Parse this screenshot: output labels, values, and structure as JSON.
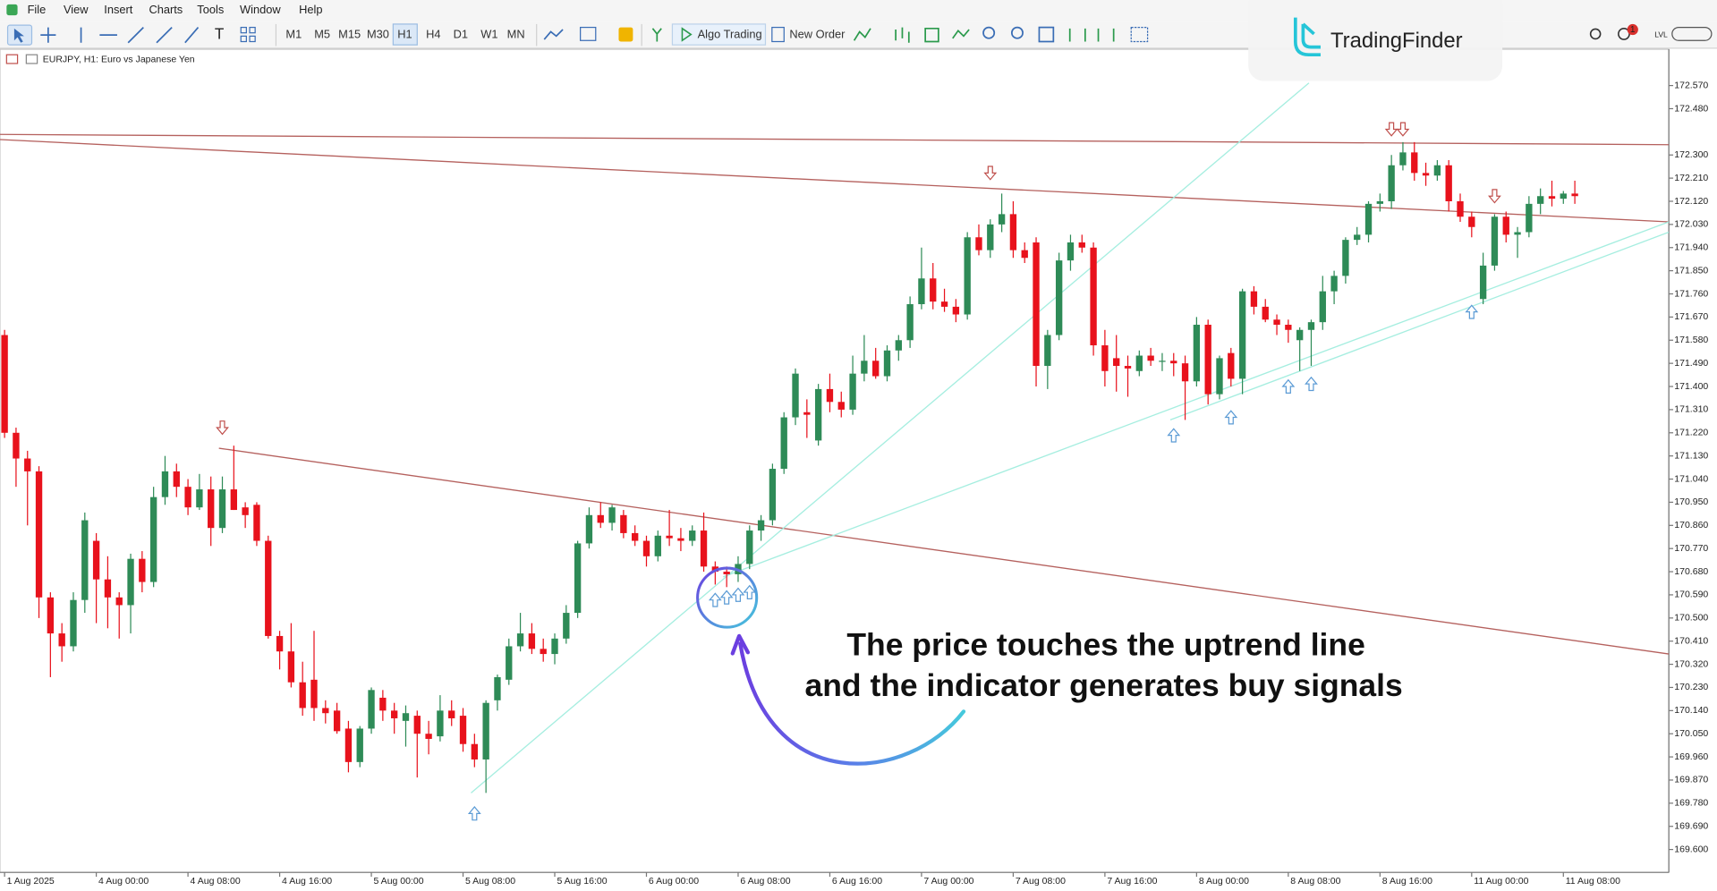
{
  "menu": [
    "File",
    "View",
    "Insert",
    "Charts",
    "Tools",
    "Window",
    "Help"
  ],
  "toolbar": {
    "timeframes": [
      "M1",
      "M5",
      "M15",
      "M30",
      "H1",
      "H4",
      "D1",
      "W1",
      "MN"
    ],
    "algo_trading": "Algo Trading",
    "new_order": "New Order",
    "badge": 1,
    "lvl": "LVL"
  },
  "watermark": "TradingFinder",
  "chart_data": {
    "type": "candlestick",
    "title": "EURJPY, H1: Euro vs Japanese Yen",
    "annotations": [
      "The price touches the uptrend line",
      "and the indicator generates buy signals"
    ],
    "up_color": "#2e8b57",
    "down_color": "#e8121c",
    "categories": [
      "1 Aug 2025",
      null,
      null,
      null,
      null,
      null,
      null,
      null,
      "4 Aug 00:00",
      null,
      null,
      null,
      null,
      null,
      null,
      null,
      "4 Aug 08:00",
      null,
      null,
      null,
      null,
      null,
      null,
      null,
      "4 Aug 16:00",
      null,
      null,
      null,
      null,
      null,
      null,
      null,
      "5 Aug 00:00",
      null,
      null,
      null,
      null,
      null,
      null,
      null,
      "5 Aug 08:00",
      null,
      null,
      null,
      null,
      null,
      null,
      null,
      "5 Aug 16:00",
      null,
      null,
      null,
      null,
      null,
      null,
      null,
      "6 Aug 00:00",
      null,
      null,
      null,
      null,
      null,
      null,
      null,
      "6 Aug 08:00",
      null,
      null,
      null,
      null,
      null,
      null,
      null,
      "6 Aug 16:00",
      null,
      null,
      null,
      null,
      null,
      null,
      null,
      "7 Aug 00:00",
      null,
      null,
      null,
      null,
      null,
      null,
      null,
      "7 Aug 08:00",
      null,
      null,
      null,
      null,
      null,
      null,
      null,
      "7 Aug 16:00",
      null,
      null,
      null,
      null,
      null,
      null,
      null,
      "8 Aug 00:00",
      null,
      null,
      null,
      null,
      null,
      null,
      null,
      "8 Aug 08:00",
      null,
      null,
      null,
      null,
      null,
      null,
      null,
      "8 Aug 16:00",
      null,
      null,
      null,
      null,
      null,
      null,
      null,
      "11 Aug 00:00",
      null,
      null,
      null,
      null,
      null,
      null,
      null,
      "11 Aug 08:00",
      null
    ],
    "open": [
      171.6,
      171.22,
      171.12,
      171.07,
      170.58,
      170.44,
      170.39,
      170.57,
      170.8,
      170.65,
      170.58,
      170.55,
      170.73,
      170.64,
      170.97,
      171.07,
      171.01,
      170.93,
      171.0,
      170.85,
      171.0,
      170.93,
      170.94,
      170.8,
      170.43,
      170.37,
      170.25,
      170.26,
      170.15,
      170.14,
      170.07,
      169.94,
      170.07,
      170.19,
      170.14,
      170.1,
      170.12,
      170.05,
      170.04,
      170.14,
      170.12,
      170.01,
      169.95,
      170.18,
      170.26,
      170.39,
      170.44,
      170.38,
      170.36,
      170.42,
      170.52,
      170.79,
      170.9,
      170.87,
      170.9,
      170.83,
      170.8,
      170.74,
      170.82,
      170.81,
      170.8,
      170.84,
      170.7,
      170.68,
      170.67,
      170.71,
      170.84,
      170.88,
      171.08,
      171.28,
      171.3,
      171.19,
      171.39,
      171.34,
      171.31,
      171.45,
      171.5,
      171.44,
      171.54,
      171.58,
      171.72,
      171.82,
      171.73,
      171.71,
      171.68,
      171.98,
      171.93,
      172.03,
      172.07,
      171.93,
      171.96,
      171.48,
      171.6,
      171.89,
      171.96,
      171.94,
      171.56,
      171.51,
      171.48,
      171.46,
      171.52,
      171.5,
      171.5,
      171.49,
      171.42,
      171.64,
      171.37,
      171.53,
      171.43,
      171.77,
      171.71,
      171.66,
      171.64,
      171.58,
      171.62,
      171.65,
      171.77,
      171.83,
      171.97,
      171.99,
      172.11,
      172.12,
      172.26,
      172.31,
      172.23,
      172.22,
      172.26,
      172.12,
      172.06,
      171.74,
      171.87,
      172.06,
      171.99,
      172.0,
      172.11,
      172.14,
      172.13,
      172.15
    ],
    "high": [
      171.62,
      171.24,
      171.15,
      171.09,
      170.6,
      170.48,
      170.6,
      170.91,
      170.83,
      170.74,
      170.6,
      170.75,
      170.76,
      171.01,
      171.13,
      171.1,
      171.04,
      171.06,
      171.05,
      171.05,
      171.17,
      170.95,
      170.95,
      170.82,
      170.45,
      170.48,
      170.33,
      170.45,
      170.18,
      170.17,
      170.1,
      170.08,
      170.23,
      170.22,
      170.17,
      170.16,
      170.14,
      170.1,
      170.2,
      170.18,
      170.15,
      170.05,
      170.18,
      170.28,
      170.42,
      170.52,
      170.48,
      170.42,
      170.44,
      170.55,
      170.8,
      170.93,
      170.95,
      170.94,
      170.92,
      170.86,
      170.82,
      170.84,
      170.92,
      170.85,
      170.86,
      170.91,
      170.72,
      170.7,
      170.74,
      170.86,
      170.9,
      171.1,
      171.3,
      171.47,
      171.35,
      171.41,
      171.45,
      171.38,
      171.52,
      171.6,
      171.55,
      171.56,
      171.6,
      171.75,
      171.94,
      171.88,
      171.78,
      171.74,
      172.0,
      172.03,
      172.05,
      172.15,
      172.12,
      171.96,
      171.98,
      171.62,
      171.92,
      171.99,
      171.99,
      171.96,
      171.62,
      171.6,
      171.52,
      171.54,
      171.55,
      171.53,
      171.53,
      171.52,
      171.67,
      171.66,
      171.52,
      171.55,
      171.78,
      171.79,
      171.74,
      171.68,
      171.66,
      171.63,
      171.66,
      171.83,
      171.85,
      171.98,
      172.02,
      172.12,
      172.15,
      172.3,
      172.35,
      172.35,
      172.27,
      172.28,
      172.28,
      172.15,
      172.08,
      171.92,
      172.07,
      172.08,
      172.02,
      172.14,
      172.17,
      172.2,
      172.16,
      172.2
    ],
    "low": [
      171.2,
      171.01,
      170.86,
      170.5,
      170.27,
      170.33,
      170.37,
      170.52,
      170.48,
      170.46,
      170.42,
      170.44,
      170.6,
      170.62,
      170.94,
      170.97,
      170.9,
      170.92,
      170.78,
      170.83,
      170.92,
      170.85,
      170.78,
      170.42,
      170.3,
      170.23,
      170.12,
      170.1,
      170.09,
      170.05,
      169.9,
      169.92,
      170.05,
      170.1,
      170.05,
      170.0,
      169.88,
      169.97,
      170.02,
      170.08,
      169.98,
      169.92,
      169.82,
      170.14,
      170.24,
      170.37,
      170.36,
      170.33,
      170.32,
      170.4,
      170.5,
      170.77,
      170.85,
      170.84,
      170.81,
      170.78,
      170.7,
      170.72,
      170.78,
      170.76,
      170.78,
      170.68,
      170.63,
      170.62,
      170.64,
      170.69,
      170.8,
      170.86,
      171.06,
      171.25,
      171.2,
      171.17,
      171.3,
      171.28,
      171.29,
      171.42,
      171.43,
      171.42,
      171.5,
      171.55,
      171.7,
      171.7,
      171.69,
      171.65,
      171.66,
      171.91,
      171.9,
      172.0,
      171.9,
      171.88,
      171.4,
      171.39,
      171.58,
      171.85,
      171.92,
      171.52,
      171.4,
      171.38,
      171.36,
      171.44,
      171.48,
      171.46,
      171.44,
      171.27,
      171.4,
      171.33,
      171.35,
      171.4,
      171.37,
      171.68,
      171.65,
      171.6,
      171.57,
      171.46,
      171.48,
      171.62,
      171.72,
      171.8,
      171.95,
      171.96,
      172.08,
      172.09,
      172.24,
      172.2,
      172.18,
      172.2,
      172.08,
      172.04,
      171.98,
      171.72,
      171.85,
      171.96,
      171.9,
      171.98,
      172.07,
      172.1,
      172.11,
      172.11
    ],
    "close": [
      171.22,
      171.12,
      171.07,
      170.58,
      170.44,
      170.39,
      170.57,
      170.88,
      170.65,
      170.58,
      170.55,
      170.73,
      170.64,
      170.97,
      171.07,
      171.01,
      170.93,
      171.0,
      170.85,
      171.0,
      170.92,
      170.9,
      170.8,
      170.43,
      170.37,
      170.25,
      170.15,
      170.15,
      170.13,
      170.06,
      169.94,
      170.07,
      170.22,
      170.14,
      170.11,
      170.13,
      170.05,
      170.03,
      170.14,
      170.11,
      170.01,
      169.95,
      170.17,
      170.27,
      170.39,
      170.44,
      170.38,
      170.36,
      170.42,
      170.52,
      170.79,
      170.9,
      170.87,
      170.93,
      170.83,
      170.8,
      170.74,
      170.82,
      170.81,
      170.8,
      170.84,
      170.7,
      170.68,
      170.67,
      170.71,
      170.84,
      170.88,
      171.08,
      171.28,
      171.45,
      171.29,
      171.39,
      171.34,
      171.31,
      171.45,
      171.5,
      171.44,
      171.54,
      171.58,
      171.72,
      171.82,
      171.73,
      171.71,
      171.68,
      171.98,
      171.93,
      172.03,
      172.07,
      171.93,
      171.9,
      171.48,
      171.6,
      171.89,
      171.96,
      171.94,
      171.56,
      171.46,
      171.48,
      171.47,
      171.52,
      171.5,
      171.5,
      171.49,
      171.42,
      171.64,
      171.37,
      171.51,
      171.43,
      171.77,
      171.71,
      171.66,
      171.64,
      171.62,
      171.62,
      171.65,
      171.77,
      171.83,
      171.97,
      171.99,
      172.11,
      172.12,
      172.26,
      172.31,
      172.23,
      172.22,
      172.26,
      172.12,
      172.06,
      172.02,
      171.87,
      172.06,
      171.99,
      172.0,
      172.11,
      172.14,
      172.13,
      172.15,
      172.14
    ],
    "lines": [
      {
        "color": "#b5615e",
        "points": [
          [
            -0.4,
            172.38
          ],
          [
            145.2,
            172.34
          ]
        ]
      },
      {
        "color": "#b5615e",
        "points": [
          [
            -0.4,
            172.36
          ],
          [
            145.2,
            172.04
          ]
        ]
      },
      {
        "color": "#b5615e",
        "points": [
          [
            18.7,
            171.16
          ],
          [
            145.2,
            170.36
          ]
        ]
      },
      {
        "color": "#a6eee0",
        "points": [
          [
            40.7,
            169.82
          ],
          [
            113.8,
            172.58
          ]
        ]
      },
      {
        "color": "#a6eee0",
        "points": [
          [
            62.7,
            170.66
          ],
          [
            145.2,
            172.04
          ]
        ]
      },
      {
        "color": "#a6eee0",
        "points": [
          [
            101.7,
            171.27
          ],
          [
            145.2,
            172.0
          ]
        ]
      }
    ],
    "sell_signals": {
      "color": "#c0504d",
      "points": [
        [
          19,
          171.24
        ],
        [
          86,
          172.23
        ],
        [
          121,
          172.4
        ],
        [
          122,
          172.4
        ],
        [
          130,
          172.14
        ]
      ]
    },
    "buy_signals": {
      "color": "#5b9bd5",
      "points": [
        [
          41,
          169.74
        ],
        [
          62,
          170.57
        ],
        [
          63,
          170.58
        ],
        [
          64,
          170.59
        ],
        [
          65,
          170.6
        ],
        [
          102,
          171.21
        ],
        [
          107,
          171.28
        ],
        [
          112,
          171.4
        ],
        [
          114,
          171.41
        ],
        [
          128,
          171.69
        ]
      ]
    },
    "xlim": [
      -0.4,
      145.2
    ],
    "ylim": [
      169.511,
      172.711
    ],
    "yticks": [
      {
        "value": 172.57,
        "label": "172.570"
      },
      {
        "value": 172.48,
        "label": "172.480"
      },
      {
        "value": 172.3,
        "label": "172.300"
      },
      {
        "value": 172.21,
        "label": "172.210"
      },
      {
        "value": 172.12,
        "label": "172.120"
      },
      {
        "value": 172.03,
        "label": "172.030"
      },
      {
        "value": 171.94,
        "label": "171.940"
      },
      {
        "value": 171.85,
        "label": "171.850"
      },
      {
        "value": 171.76,
        "label": "171.760"
      },
      {
        "value": 171.67,
        "label": "171.670"
      },
      {
        "value": 171.58,
        "label": "171.580"
      },
      {
        "value": 171.49,
        "label": "171.490"
      },
      {
        "value": 171.4,
        "label": "171.400"
      },
      {
        "value": 171.31,
        "label": "171.310"
      },
      {
        "value": 171.22,
        "label": "171.220"
      },
      {
        "value": 171.13,
        "label": "171.130"
      },
      {
        "value": 171.04,
        "label": "171.040"
      },
      {
        "value": 170.95,
        "label": "170.950"
      },
      {
        "value": 170.86,
        "label": "170.860"
      },
      {
        "value": 170.77,
        "label": "170.770"
      },
      {
        "value": 170.68,
        "label": "170.680"
      },
      {
        "value": 170.59,
        "label": "170.590"
      },
      {
        "value": 170.5,
        "label": "170.500"
      },
      {
        "value": 170.41,
        "label": "170.410"
      },
      {
        "value": 170.32,
        "label": "170.320"
      },
      {
        "value": 170.23,
        "label": "170.230"
      },
      {
        "value": 170.14,
        "label": "170.140"
      },
      {
        "value": 170.05,
        "label": "170.050"
      },
      {
        "value": 169.96,
        "label": "169.960"
      },
      {
        "value": 169.87,
        "label": "169.870"
      },
      {
        "value": 169.78,
        "label": "169.780"
      },
      {
        "value": 169.69,
        "label": "169.690"
      },
      {
        "value": 169.6,
        "label": "169.600"
      }
    ]
  }
}
